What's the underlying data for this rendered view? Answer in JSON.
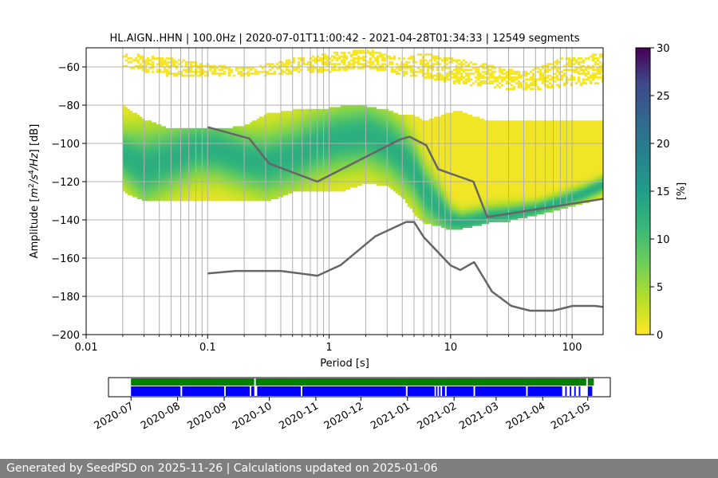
{
  "chart_data": {
    "type": "heatmap",
    "title": "HL.AIGN..HHN | 100.0Hz | 2020-07-01T11:00:42 - 2021-04-28T01:34:33 | 12549 segments",
    "xlabel": "Period [s]",
    "ylabel_parts": [
      "Amplitude [",
      "m",
      "2",
      "/s",
      "4",
      "/Hz",
      "] [dB]"
    ],
    "x_scale": "log",
    "xlim": [
      0.01,
      180
    ],
    "ylim": [
      -200,
      -50
    ],
    "x_ticks": [
      0.01,
      0.1,
      1,
      10,
      100
    ],
    "x_tick_labels": [
      "0.01",
      "0.1",
      "1",
      "10",
      "100"
    ],
    "y_ticks": [
      -200,
      -180,
      -160,
      -140,
      -120,
      -100,
      -80,
      -60
    ],
    "y_tick_labels": [
      "−200",
      "−180",
      "−160",
      "−140",
      "−120",
      "−100",
      "−80",
      "−60"
    ],
    "grid": true,
    "colorbar": {
      "label": "[%]",
      "range": [
        0,
        30
      ],
      "ticks": [
        0,
        5,
        10,
        15,
        20,
        25,
        30
      ],
      "colormap": "viridis_r"
    },
    "density_ridge": {
      "period": [
        0.02,
        0.03,
        0.05,
        0.08,
        0.12,
        0.2,
        0.3,
        0.5,
        0.8,
        1.2,
        2,
        3,
        4,
        5,
        6,
        8,
        10,
        12,
        15,
        20,
        30,
        50,
        80,
        120,
        180
      ],
      "center_db": [
        -106,
        -112,
        -107,
        -102,
        -103,
        -108,
        -110,
        -106,
        -100,
        -97,
        -95,
        -100,
        -107,
        -115,
        -125,
        -134,
        -140,
        -141,
        -140,
        -138,
        -137,
        -134,
        -130,
        -126,
        -121
      ],
      "spread_db": [
        10,
        14,
        12,
        11,
        11,
        11,
        12,
        12,
        12,
        12,
        12,
        12,
        12,
        11,
        10,
        8,
        5,
        4,
        4,
        4,
        4,
        3,
        3,
        3,
        3
      ],
      "upper_db": [
        -80,
        -87,
        -92,
        -92,
        -92,
        -90,
        -84,
        -82,
        -82,
        -80,
        -80,
        -82,
        -85,
        -85,
        -88,
        -85,
        -83,
        -83,
        -85,
        -88,
        -88,
        -88,
        -88,
        -88,
        -88
      ],
      "lower_db": [
        -125,
        -130,
        -130,
        -130,
        -130,
        -130,
        -130,
        -125,
        -125,
        -125,
        -120,
        -122,
        -128,
        -137,
        -141,
        -143,
        -145,
        -144,
        -143,
        -141,
        -140,
        -137,
        -134,
        -131,
        -128
      ]
    },
    "sparse_upper": {
      "period": [
        0.02,
        0.05,
        0.1,
        0.2,
        0.3,
        0.5,
        1,
        2,
        3,
        4,
        6,
        10,
        20,
        40,
        80,
        180
      ],
      "top_db": [
        -52,
        -55,
        -58,
        -60,
        -58,
        -55,
        -52,
        -50,
        -53,
        -55,
        -52,
        -55,
        -58,
        -62,
        -55,
        -52
      ],
      "bottom_db": [
        -60,
        -65,
        -65,
        -65,
        -64,
        -63,
        -62,
        -60,
        -62,
        -64,
        -65,
        -68,
        -70,
        -72,
        -70,
        -68
      ]
    },
    "series": [
      {
        "role": "nhnm",
        "color": "#666666",
        "period": [
          0.1,
          0.22,
          0.32,
          0.8,
          3.8,
          4.6,
          6.3,
          7.9,
          15.4,
          20,
          180
        ],
        "db": [
          -91.5,
          -97.4,
          -110.5,
          -120,
          -98,
          -96.5,
          -101,
          -113.5,
          -120,
          -138.5,
          -129
        ]
      },
      {
        "role": "nlnm",
        "color": "#666666",
        "period": [
          0.1,
          0.17,
          0.4,
          0.8,
          1.24,
          2.4,
          4.3,
          5,
          6,
          10,
          12,
          15.6,
          21.9,
          31.6,
          45,
          70,
          101,
          154,
          180
        ],
        "db": [
          -168,
          -166.7,
          -166.7,
          -169.2,
          -163.7,
          -148.6,
          -141.1,
          -141.1,
          -149,
          -163.8,
          -166.2,
          -162.1,
          -177.5,
          -185,
          -187.5,
          -187.5,
          -185,
          -185,
          -185.5
        ]
      }
    ]
  },
  "coverage": {
    "x_tick_labels": [
      "2020-07",
      "2020-08",
      "2020-09",
      "2020-10",
      "2020-11",
      "2020-12",
      "2021-01",
      "2021-02",
      "2021-03",
      "2021-04",
      "2021-05"
    ],
    "x_ticks": [
      "2020-07-01",
      "2020-08-01",
      "2020-09-01",
      "2020-10-01",
      "2020-11-01",
      "2020-12-01",
      "2021-01-01",
      "2021-02-01",
      "2021-03-01",
      "2021-04-01",
      "2021-05-01"
    ],
    "xlim": [
      "2020-06-16",
      "2021-05-16"
    ],
    "data_color": "#008000",
    "processed_color": "#0000ff",
    "data_intervals": [
      [
        "2020-07-01",
        "2020-09-21"
      ],
      [
        "2020-09-22",
        "2021-04-26"
      ],
      [
        "2021-04-26",
        "2021-04-30"
      ],
      [
        "2021-05-01",
        "2021-05-05"
      ]
    ],
    "processed_intervals": [
      [
        "2020-07-01",
        "2020-08-03"
      ],
      [
        "2020-08-04",
        "2020-09-01"
      ],
      [
        "2020-09-02",
        "2020-09-18"
      ],
      [
        "2020-09-19",
        "2020-09-21"
      ],
      [
        "2020-09-23",
        "2020-10-22"
      ],
      [
        "2020-10-23",
        "2020-12-31"
      ],
      [
        "2021-01-01",
        "2021-01-19"
      ],
      [
        "2021-01-20",
        "2021-01-21"
      ],
      [
        "2021-01-22",
        "2021-01-23"
      ],
      [
        "2021-01-24",
        "2021-01-26"
      ],
      [
        "2021-01-27",
        "2021-02-14"
      ],
      [
        "2021-02-15",
        "2021-03-21"
      ],
      [
        "2021-03-22",
        "2021-04-14"
      ],
      [
        "2021-04-16",
        "2021-04-17"
      ],
      [
        "2021-04-19",
        "2021-04-20"
      ],
      [
        "2021-04-22",
        "2021-04-23"
      ],
      [
        "2021-04-25",
        "2021-04-26"
      ],
      [
        "2021-05-01",
        "2021-05-04"
      ]
    ]
  },
  "footer": {
    "text": "Generated by SeedPSD on 2025-11-26 | Calculations updated on 2025-01-06"
  }
}
